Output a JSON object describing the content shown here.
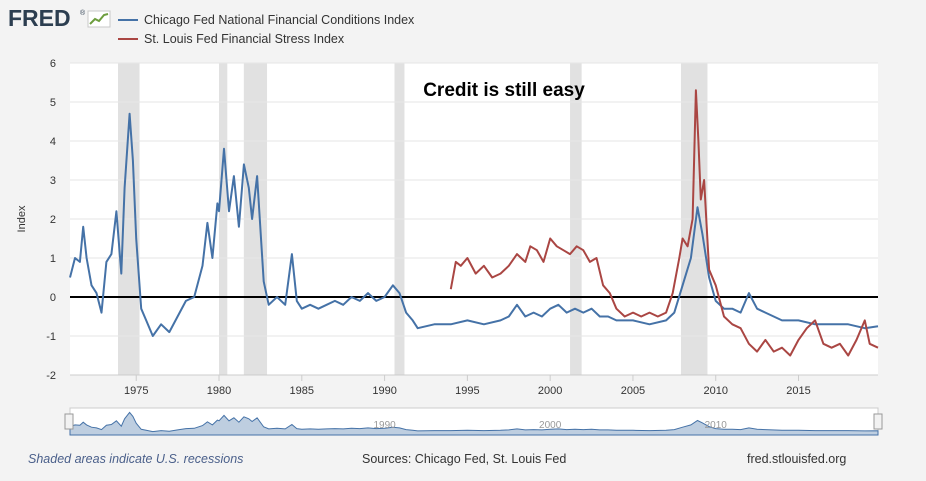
{
  "logo": {
    "text": "FRED",
    "registered": "®"
  },
  "chart_data": {
    "type": "line",
    "title": "Credit is still easy",
    "xlabel": "",
    "ylabel": "Index",
    "xlim": [
      1971,
      2019.8
    ],
    "ylim": [
      -2,
      6
    ],
    "x_ticks": [
      1975,
      1980,
      1985,
      1990,
      1995,
      2000,
      2005,
      2010,
      2015
    ],
    "y_ticks": [
      -2,
      -1,
      0,
      1,
      2,
      3,
      4,
      5,
      6
    ],
    "reference_line": 0,
    "recessions": [
      [
        1973.9,
        1975.2
      ],
      [
        1980.0,
        1980.5
      ],
      [
        1981.5,
        1982.9
      ],
      [
        1990.6,
        1991.2
      ],
      [
        2001.2,
        2001.9
      ],
      [
        2007.9,
        2009.5
      ]
    ],
    "series": [
      {
        "name": "Chicago Fed National Financial Conditions Index",
        "color": "#4572a7",
        "x": [
          1971.0,
          1971.3,
          1971.6,
          1971.8,
          1972.0,
          1972.3,
          1972.6,
          1972.9,
          1973.2,
          1973.5,
          1973.8,
          1974.1,
          1974.3,
          1974.6,
          1974.8,
          1975.0,
          1975.3,
          1975.6,
          1976.0,
          1976.5,
          1977.0,
          1977.5,
          1978.0,
          1978.5,
          1979.0,
          1979.3,
          1979.6,
          1979.9,
          1980.0,
          1980.3,
          1980.6,
          1980.9,
          1981.2,
          1981.5,
          1981.8,
          1982.0,
          1982.3,
          1982.7,
          1983.0,
          1983.5,
          1984.0,
          1984.4,
          1984.7,
          1985.0,
          1985.5,
          1986.0,
          1986.5,
          1987.0,
          1987.5,
          1988.0,
          1988.5,
          1989.0,
          1989.5,
          1990.0,
          1990.5,
          1990.9,
          1991.3,
          1991.7,
          1992.0,
          1993.0,
          1994.0,
          1995.0,
          1996.0,
          1997.0,
          1997.5,
          1998.0,
          1998.5,
          1999.0,
          1999.5,
          2000.0,
          2000.5,
          2001.0,
          2001.5,
          2002.0,
          2002.5,
          2003.0,
          2003.5,
          2004.0,
          2005.0,
          2006.0,
          2007.0,
          2007.5,
          2008.0,
          2008.5,
          2008.9,
          2009.2,
          2009.6,
          2010.0,
          2010.5,
          2011.0,
          2011.5,
          2012.0,
          2012.5,
          2013.0,
          2014.0,
          2015.0,
          2016.0,
          2017.0,
          2018.0,
          2019.0,
          2019.8
        ],
        "values": [
          0.5,
          1.0,
          0.9,
          1.8,
          1.0,
          0.3,
          0.1,
          -0.4,
          0.9,
          1.1,
          2.2,
          0.6,
          2.8,
          4.7,
          3.5,
          1.5,
          -0.3,
          -0.6,
          -1.0,
          -0.7,
          -0.9,
          -0.5,
          -0.1,
          0.0,
          0.8,
          1.9,
          1.0,
          2.4,
          2.2,
          3.8,
          2.2,
          3.1,
          1.8,
          3.4,
          2.8,
          2.0,
          3.1,
          0.4,
          -0.2,
          0.0,
          -0.2,
          1.1,
          -0.1,
          -0.3,
          -0.2,
          -0.3,
          -0.2,
          -0.1,
          -0.2,
          0.0,
          -0.1,
          0.1,
          -0.1,
          0.0,
          0.3,
          0.1,
          -0.4,
          -0.6,
          -0.8,
          -0.7,
          -0.7,
          -0.6,
          -0.7,
          -0.6,
          -0.5,
          -0.2,
          -0.5,
          -0.4,
          -0.5,
          -0.3,
          -0.2,
          -0.4,
          -0.3,
          -0.4,
          -0.3,
          -0.5,
          -0.5,
          -0.6,
          -0.6,
          -0.7,
          -0.6,
          -0.4,
          0.3,
          1.0,
          2.3,
          1.6,
          0.5,
          -0.1,
          -0.3,
          -0.3,
          -0.4,
          0.1,
          -0.3,
          -0.4,
          -0.6,
          -0.6,
          -0.7,
          -0.7,
          -0.7,
          -0.8,
          -0.75
        ]
      },
      {
        "name": "St. Louis Fed Financial Stress Index",
        "color": "#aa4643",
        "x": [
          1994.0,
          1994.3,
          1994.6,
          1995.0,
          1995.5,
          1996.0,
          1996.5,
          1997.0,
          1997.5,
          1998.0,
          1998.5,
          1998.8,
          1999.2,
          1999.6,
          2000.0,
          2000.4,
          2000.8,
          2001.2,
          2001.6,
          2002.0,
          2002.4,
          2002.8,
          2003.2,
          2003.6,
          2004.0,
          2004.5,
          2005.0,
          2005.5,
          2006.0,
          2006.5,
          2007.0,
          2007.4,
          2007.8,
          2008.0,
          2008.3,
          2008.6,
          2008.8,
          2008.95,
          2009.1,
          2009.3,
          2009.6,
          2010.0,
          2010.5,
          2011.0,
          2011.5,
          2012.0,
          2012.5,
          2013.0,
          2013.5,
          2014.0,
          2014.5,
          2015.0,
          2015.5,
          2016.0,
          2016.5,
          2017.0,
          2017.5,
          2018.0,
          2018.5,
          2019.0,
          2019.3,
          2019.8
        ],
        "values": [
          0.2,
          0.9,
          0.8,
          1.0,
          0.6,
          0.8,
          0.5,
          0.6,
          0.8,
          1.1,
          0.9,
          1.3,
          1.2,
          0.9,
          1.5,
          1.3,
          1.2,
          1.1,
          1.3,
          1.2,
          0.9,
          1.0,
          0.3,
          0.1,
          -0.3,
          -0.5,
          -0.4,
          -0.5,
          -0.4,
          -0.5,
          -0.4,
          0.1,
          1.0,
          1.5,
          1.3,
          2.0,
          5.3,
          4.0,
          2.5,
          3.0,
          0.7,
          0.3,
          -0.5,
          -0.7,
          -0.8,
          -1.2,
          -1.4,
          -1.1,
          -1.4,
          -1.3,
          -1.5,
          -1.1,
          -0.8,
          -0.6,
          -1.2,
          -1.3,
          -1.2,
          -1.5,
          -1.1,
          -0.6,
          -1.2,
          -1.3
        ]
      }
    ]
  },
  "footer": {
    "recession_note": "Shaded areas indicate U.S. recessions",
    "sources": "Sources: Chicago Fed, St. Louis Fed",
    "url": "fred.stlouisfed.org"
  }
}
